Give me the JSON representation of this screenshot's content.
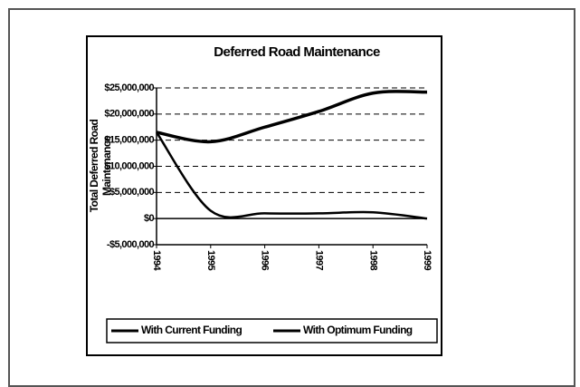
{
  "chart_data": {
    "type": "line",
    "title": "Deferred Road Maintenance",
    "y_label": "Total Deferred Road Maintenance",
    "categories": [
      "1994",
      "1995",
      "1996",
      "1997",
      "1998",
      "1999"
    ],
    "series": [
      {
        "name": "With Current Funding",
        "color": "#000000",
        "values": [
          16500000,
          14700000,
          17500000,
          20500000,
          24000000,
          24200000
        ]
      },
      {
        "name": "With Optimum Funding",
        "color": "#000000",
        "values": [
          16500000,
          1500000,
          1000000,
          1000000,
          1200000,
          0
        ]
      }
    ],
    "ylim": [
      -5000000,
      25000000
    ],
    "yticks": [
      {
        "value": -5000000,
        "label": "-$5,000,000"
      },
      {
        "value": 0,
        "label": "$0"
      },
      {
        "value": 5000000,
        "label": "$5,000,000"
      },
      {
        "value": 10000000,
        "label": "$10,000,000"
      },
      {
        "value": 15000000,
        "label": "$15,000,000"
      },
      {
        "value": 20000000,
        "label": "$20,000,000"
      },
      {
        "value": 25000000,
        "label": "$25,000,000"
      }
    ],
    "grid": true
  }
}
